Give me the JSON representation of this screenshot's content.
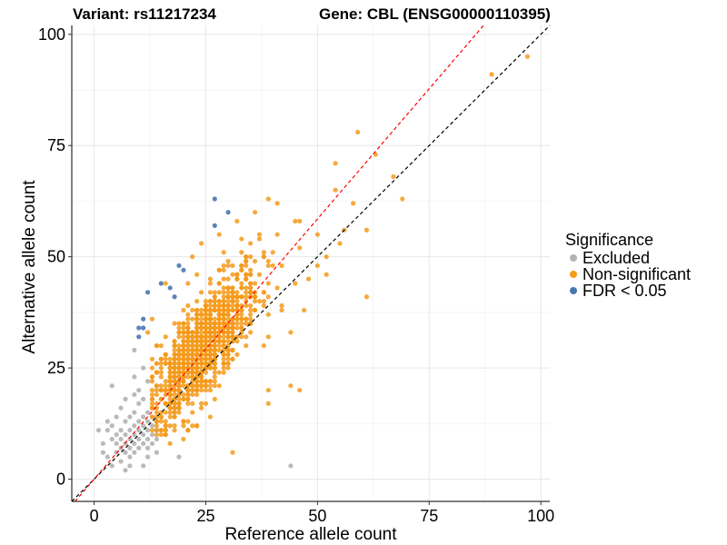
{
  "chart_data": {
    "type": "scatter",
    "title_left": "Variant: rs11217234",
    "title_right": "Gene: CBL (ENSG00000110395)",
    "xlabel": "Reference allele count",
    "ylabel": "Alternative allele count",
    "xlim": [
      -5,
      102
    ],
    "ylim": [
      -5,
      102
    ],
    "x_ticks": [
      0,
      25,
      50,
      75,
      100
    ],
    "y_ticks": [
      0,
      25,
      50,
      75,
      100
    ],
    "grid": true,
    "legend": {
      "title": "Significance",
      "placement": "right",
      "entries": [
        {
          "label": "Excluded",
          "color": "#b3b3b3"
        },
        {
          "label": "Non-significant",
          "color": "#f59a1b"
        },
        {
          "label": "FDR < 0.05",
          "color": "#4a77b0"
        }
      ]
    },
    "reference_lines": [
      {
        "name": "identity",
        "slope": 1.0,
        "intercept": 0,
        "color": "#000000",
        "dash": true
      },
      {
        "name": "fit",
        "slope": 1.17,
        "intercept": 0,
        "color": "#ff0000",
        "dash": true
      }
    ],
    "series": [
      {
        "name": "Excluded",
        "color": "#b3b3b3",
        "points": [
          [
            1,
            11
          ],
          [
            2,
            8
          ],
          [
            3,
            11
          ],
          [
            3,
            5
          ],
          [
            4,
            9
          ],
          [
            4,
            12
          ],
          [
            5,
            8
          ],
          [
            5,
            10
          ],
          [
            5,
            6
          ],
          [
            6,
            7
          ],
          [
            6,
            9
          ],
          [
            6,
            11
          ],
          [
            6,
            4
          ],
          [
            7,
            8
          ],
          [
            7,
            10
          ],
          [
            7,
            6
          ],
          [
            7,
            13
          ],
          [
            8,
            9
          ],
          [
            8,
            11
          ],
          [
            8,
            7
          ],
          [
            8,
            5
          ],
          [
            8,
            14
          ],
          [
            9,
            10
          ],
          [
            9,
            8
          ],
          [
            9,
            12
          ],
          [
            9,
            6
          ],
          [
            9,
            15
          ],
          [
            9,
            19
          ],
          [
            9,
            29
          ],
          [
            10,
            9
          ],
          [
            10,
            11
          ],
          [
            10,
            13
          ],
          [
            10,
            7
          ],
          [
            10,
            17
          ],
          [
            10,
            20
          ],
          [
            11,
            10
          ],
          [
            11,
            12
          ],
          [
            11,
            8
          ],
          [
            11,
            14
          ],
          [
            11,
            18
          ],
          [
            11,
            25
          ],
          [
            12,
            11
          ],
          [
            12,
            9
          ],
          [
            12,
            13
          ],
          [
            12,
            7
          ],
          [
            12,
            15
          ],
          [
            12,
            22
          ],
          [
            13,
            10
          ],
          [
            13,
            12
          ],
          [
            13,
            8
          ],
          [
            13,
            14
          ],
          [
            13,
            16
          ],
          [
            14,
            11
          ],
          [
            14,
            9
          ],
          [
            14,
            13
          ],
          [
            4,
            21
          ],
          [
            6,
            16
          ],
          [
            5,
            14
          ],
          [
            7,
            2
          ],
          [
            11,
            3
          ],
          [
            19,
            5
          ],
          [
            44,
            3
          ],
          [
            8,
            3
          ],
          [
            12,
            5
          ],
          [
            3,
            13
          ],
          [
            7,
            18
          ],
          [
            9,
            23
          ],
          [
            14,
            6
          ],
          [
            4,
            3
          ],
          [
            2,
            6
          ]
        ]
      },
      {
        "name": "FDR < 0.05",
        "color": "#4a77b0",
        "points": [
          [
            27,
            63
          ],
          [
            27,
            57
          ],
          [
            30,
            60
          ],
          [
            19,
            48
          ],
          [
            20,
            47
          ],
          [
            15,
            44
          ],
          [
            12,
            42
          ],
          [
            17,
            43
          ],
          [
            18,
            41
          ],
          [
            11,
            36
          ],
          [
            10,
            34
          ],
          [
            11,
            34
          ],
          [
            10,
            32
          ]
        ]
      },
      {
        "name": "Non-significant",
        "color": "#f59a1b",
        "generated": true,
        "center": [
          24,
          29
        ],
        "count": 1100,
        "extra_points": [
          [
            97,
            95
          ],
          [
            89,
            91
          ],
          [
            59,
            78
          ],
          [
            63,
            73
          ],
          [
            54,
            71
          ],
          [
            69,
            63
          ],
          [
            67,
            68
          ],
          [
            54,
            65
          ],
          [
            58,
            62
          ],
          [
            61,
            56
          ],
          [
            61,
            41
          ],
          [
            46,
            52
          ],
          [
            50,
            48
          ],
          [
            39,
            63
          ],
          [
            41,
            62
          ],
          [
            46,
            58
          ],
          [
            39,
            17
          ],
          [
            44,
            21
          ],
          [
            46,
            20
          ],
          [
            39,
            20
          ],
          [
            35,
            35
          ],
          [
            38,
            30
          ],
          [
            42,
            38
          ],
          [
            48,
            45
          ],
          [
            52,
            50
          ],
          [
            45,
            44
          ],
          [
            50,
            55
          ],
          [
            52,
            46
          ],
          [
            44,
            33
          ],
          [
            47,
            38
          ],
          [
            55,
            53
          ],
          [
            56,
            56
          ],
          [
            32,
            58
          ],
          [
            36,
            60
          ],
          [
            33,
            54
          ],
          [
            28,
            55
          ],
          [
            29,
            51
          ],
          [
            24,
            53
          ],
          [
            22,
            50
          ],
          [
            23,
            46
          ],
          [
            14,
            30
          ],
          [
            12,
            33
          ],
          [
            13,
            36
          ],
          [
            16,
            44
          ],
          [
            21,
            39
          ],
          [
            31,
            6
          ],
          [
            16,
            10
          ],
          [
            18,
            12
          ],
          [
            20,
            9
          ],
          [
            23,
            12
          ],
          [
            26,
            14
          ],
          [
            19,
            15
          ],
          [
            14,
            17
          ],
          [
            17,
            8
          ]
        ]
      }
    ]
  }
}
